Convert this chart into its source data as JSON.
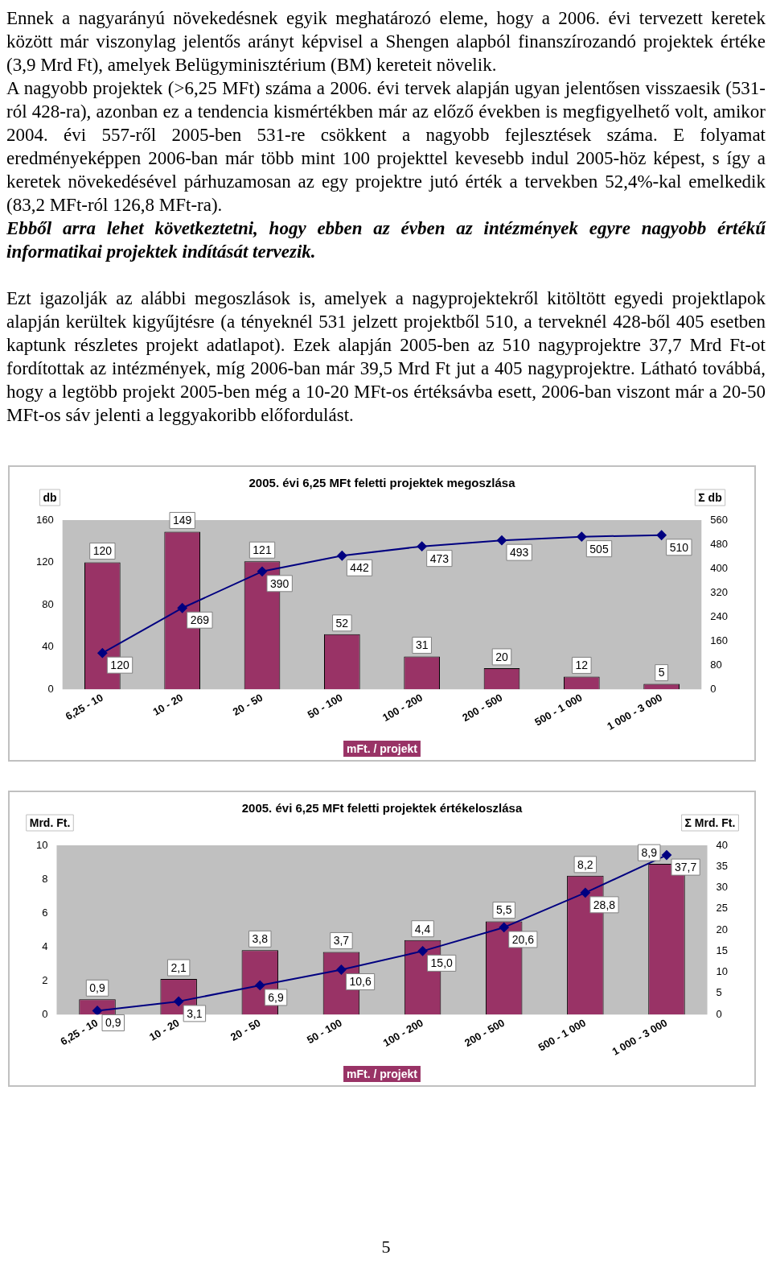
{
  "chart_data": [
    {
      "type": "bar",
      "title": "2005. évi 6,25 MFt feletti projektek megoszlása",
      "xlabel": "mFt. / projekt",
      "ylabel": "db",
      "y2label": "Σ db",
      "categories": [
        "6,25 - 10",
        "10 - 20",
        "20 - 50",
        "50 - 100",
        "100 - 200",
        "200 - 500",
        "500 - 1 000",
        "1 000 - 3 000"
      ],
      "series": [
        {
          "type": "bar",
          "color": "#993366",
          "values": [
            120,
            149,
            121,
            52,
            31,
            20,
            12,
            5
          ]
        },
        {
          "type": "line",
          "color": "#000080",
          "axis": "y2",
          "values": [
            120,
            269,
            390,
            442,
            473,
            493,
            505,
            510
          ]
        }
      ],
      "marker": "diamond",
      "ylim": [
        0,
        160
      ],
      "yticks": [
        0,
        40,
        80,
        120,
        160
      ],
      "y2lim": [
        0,
        560
      ],
      "y2ticks": [
        0,
        80,
        160,
        240,
        320,
        400,
        480,
        560
      ],
      "data_labels": true,
      "grid": false,
      "annotations": [
        "Ennek a nagyarányú növekedésnek egyik meghatározó eleme, hogy a 2006. évi tervezett keretek között már viszonylag jelentős arányt képvisel a Shengen alapból finanszírozandó projektek értéke (3,9 Mrd Ft), amelyek Belügyminisztérium (BM) kereteit növelik.",
        "A nagyobb projektek (>6,25 MFt) száma a 2006. évi tervek alapján ugyan jelentősen visszaesik (531-ról 428-ra), azonban ez a tendencia kismértékben már az előző években is megfigyelhető volt, amikor 2004. évi 557-ről 2005-ben 531-re csökkent a nagyobb fejlesztések száma. E folyamat eredményeképpen 2006-ban már több mint 100 projekttel kevesebb indul 2005-höz képest, s így a keretek növekedésével párhuzamosan az egy projektre jutó érték a tervekben 52,4%-kal emelkedik (83,2 MFt-ról 126,8 MFt-ra).",
        "Ebből arra lehet következtetni, hogy ebben az évben az intézmények egyre nagyobb értékű informatikai projektek indítását tervezik.",
        "Ezt igazolják az alábbi megoszlások is, amelyek a nagyprojektekről kitöltött egyedi projektlapok alapján kerültek kigyűjtésre (a tényeknél 531 jelzett projektből 510, a terveknél 428-ből 405 esetben kaptunk részletes projekt adatlapot). Ezek alapján 2005-ben az 510 nagyprojektre 37,7 Mrd Ft-ot fordítottak az intézmények, míg 2006-ban már 39,5 Mrd Ft jut a 405 nagyprojektre. Látható továbbá, hogy a legtöbb projekt 2005-ben még a 10-20 MFt-os értéksávba esett, 2006-ban viszont már a 20-50 MFt-os sáv jelenti a leggyakoribb előfordulást."
      ]
    },
    {
      "type": "bar",
      "title": "2005. évi 6,25 MFt feletti projektek értékeloszlása",
      "xlabel": "mFt. / projekt",
      "ylabel": "Mrd. Ft.",
      "y2label": "Σ Mrd. Ft.",
      "categories": [
        "6,25 - 10",
        "10 - 20",
        "20 - 50",
        "50 - 100",
        "100 - 200",
        "200 - 500",
        "500 - 1 000",
        "1 000 - 3 000"
      ],
      "series": [
        {
          "type": "bar",
          "color": "#993366",
          "values": [
            0.9,
            2.1,
            3.8,
            3.7,
            4.4,
            5.5,
            8.2,
            8.9
          ],
          "value_labels": [
            "0,9",
            "2,1",
            "3,8",
            "3,7",
            "4,4",
            "5,5",
            "8,2",
            "8,9"
          ]
        },
        {
          "type": "line",
          "color": "#000080",
          "axis": "y2",
          "values": [
            0.9,
            3.1,
            6.9,
            10.6,
            15.0,
            20.6,
            28.8,
            37.7
          ],
          "value_labels": [
            "0,9",
            "3,1",
            "6,9",
            "10,6",
            "15,0",
            "20,6",
            "28,8",
            "37,7"
          ]
        }
      ],
      "marker": "diamond",
      "ylim": [
        0,
        10
      ],
      "yticks": [
        0,
        2,
        4,
        6,
        8,
        10
      ],
      "y2lim": [
        0,
        40
      ],
      "y2ticks": [
        0,
        5,
        10,
        15,
        20,
        25,
        30,
        35,
        40
      ],
      "grid": false,
      "annotations": [
        "5"
      ]
    }
  ]
}
